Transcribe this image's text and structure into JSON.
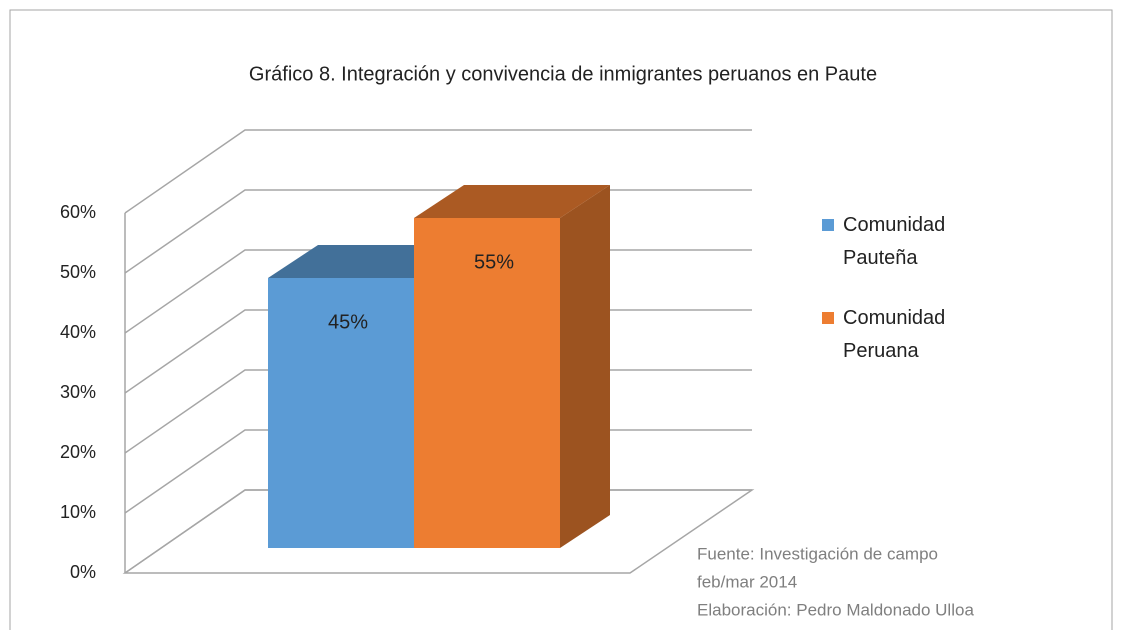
{
  "chart_data": {
    "type": "bar3d",
    "title": "Gráfico 8. Integración y convivencia de inmigrantes peruanos en Paute",
    "categories": [
      null
    ],
    "series": [
      {
        "name": "Comunidad Pauteña",
        "color": "#5b9bd5",
        "values": [
          45
        ],
        "value_labels": [
          "45%"
        ]
      },
      {
        "name": "Comunidad Peruana",
        "color": "#ed7d31",
        "values": [
          55
        ],
        "value_labels": [
          "55%"
        ]
      }
    ],
    "ylim": [
      0,
      60
    ],
    "yticks": [
      {
        "value": 0,
        "label": "0%"
      },
      {
        "value": 10,
        "label": "10%"
      },
      {
        "value": 20,
        "label": "20%"
      },
      {
        "value": 30,
        "label": "30%"
      },
      {
        "value": 40,
        "label": "40%"
      },
      {
        "value": 50,
        "label": "50%"
      },
      {
        "value": 60,
        "label": "60%"
      }
    ],
    "grid": true,
    "legend": "right",
    "annotations": [
      "Fuente: Investigación de campo",
      "feb/mar 2014",
      "Elaboración: Pedro Maldonado Ulloa"
    ]
  }
}
